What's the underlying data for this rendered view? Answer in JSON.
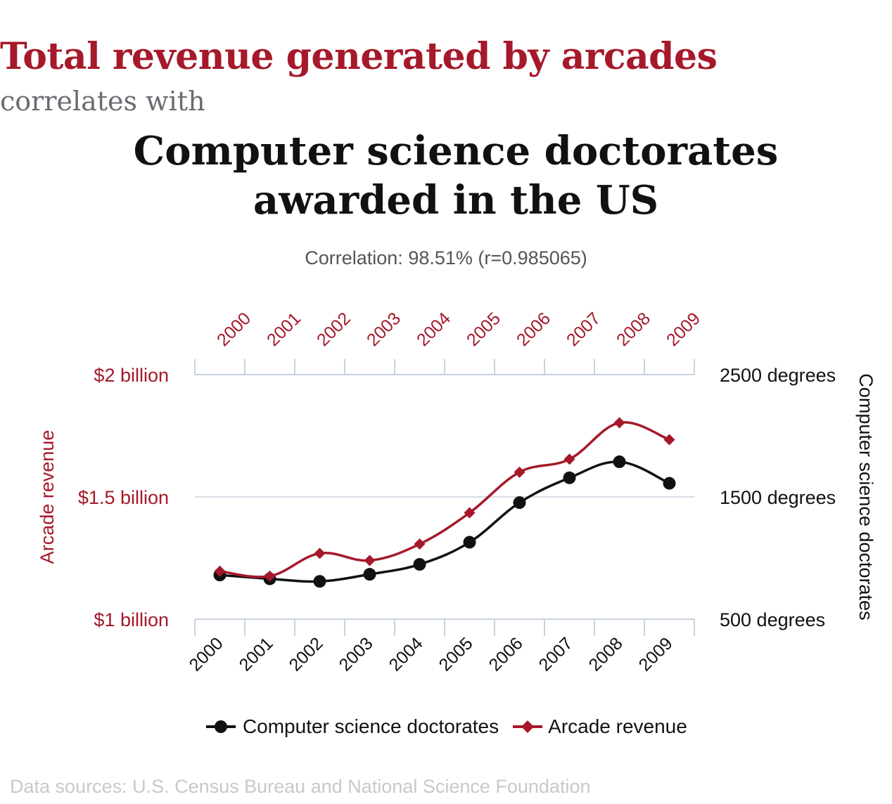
{
  "title_top": "Total revenue generated by arcades",
  "title_mid": "correlates with",
  "title_bottom": "Computer science doctorates awarded in the US",
  "correlation": "Correlation: 98.51% (r=0.985065)",
  "source": "Data sources: U.S. Census Bureau and National Science Foundation",
  "colors": {
    "arcade": "#a5192a",
    "doctorates": "#111111",
    "grid": "#c8d2dd"
  },
  "chart_data": {
    "type": "line",
    "x": [
      "2000",
      "2001",
      "2002",
      "2003",
      "2004",
      "2005",
      "2006",
      "2007",
      "2008",
      "2009"
    ],
    "series": [
      {
        "name": "Computer science doctorates",
        "axis": "right",
        "marker": "circle",
        "values": [
          861,
          830,
          809,
          867,
          948,
          1129,
          1453,
          1656,
          1787,
          1611
        ]
      },
      {
        "name": "Arcade revenue",
        "axis": "left",
        "marker": "diamond",
        "values": [
          1.196,
          1.176,
          1.269,
          1.24,
          1.307,
          1.435,
          1.601,
          1.654,
          1.803,
          1.734
        ]
      }
    ],
    "left_axis": {
      "label": "Arcade revenue",
      "ylim": [
        1,
        2
      ],
      "ticks": [
        1,
        1.5,
        2
      ],
      "tick_labels": [
        "$1 billion",
        "$1.5 billion",
        "$2 billion"
      ]
    },
    "right_axis": {
      "label": "Computer science doctorates",
      "ylim": [
        500,
        2500
      ],
      "ticks": [
        500,
        1500,
        2500
      ],
      "tick_labels": [
        "500 degrees",
        "1500 degrees",
        "2500 degrees"
      ]
    },
    "grid": true,
    "legend": "bottom"
  }
}
